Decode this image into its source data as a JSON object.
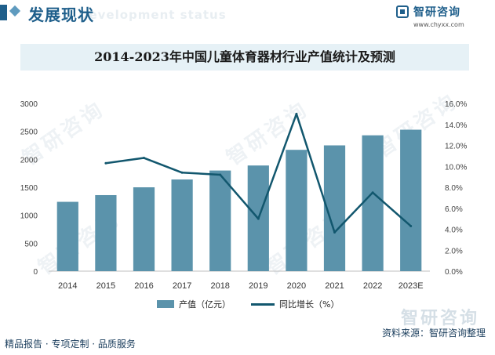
{
  "header": {
    "title": "发展现状",
    "ghost_text": "Development status",
    "brand_name": "智研咨询",
    "brand_url": "www.chyxx.com",
    "watermark": "智研咨询"
  },
  "chart_data": {
    "type": "bar",
    "title": "2014-2023年中国儿童体育器材行业产值统计及预测",
    "categories": [
      "2014",
      "2015",
      "2016",
      "2017",
      "2018",
      "2019",
      "2020",
      "2021",
      "2022",
      "2023E"
    ],
    "series": [
      {
        "name": "产值（亿元）",
        "type": "bar",
        "axis": "left",
        "values": [
          1240,
          1360,
          1500,
          1640,
          1800,
          1890,
          2170,
          2250,
          2430,
          2530
        ]
      },
      {
        "name": "同比增长（%）",
        "type": "line",
        "axis": "right",
        "values": [
          null,
          10.3,
          10.8,
          9.4,
          9.2,
          5.0,
          15.0,
          3.7,
          7.5,
          4.3
        ]
      }
    ],
    "y_left": {
      "lim": [
        0,
        3000
      ],
      "ticks": [
        "0",
        "500",
        "1000",
        "1500",
        "2000",
        "2500",
        "3000"
      ]
    },
    "y_right": {
      "lim": [
        0,
        16
      ],
      "ticks": [
        "0.0%",
        "2.0%",
        "4.0%",
        "6.0%",
        "8.0%",
        "10.0%",
        "12.0%",
        "14.0%",
        "16.0%"
      ]
    },
    "legend_position": "bottom",
    "grid": false,
    "colors": {
      "bar": "#5b93ab",
      "line": "#12576e"
    }
  },
  "footer": {
    "left": "精品报告 · 专项定制 · 品质服务",
    "right": "资料来源：智研咨询整理"
  }
}
